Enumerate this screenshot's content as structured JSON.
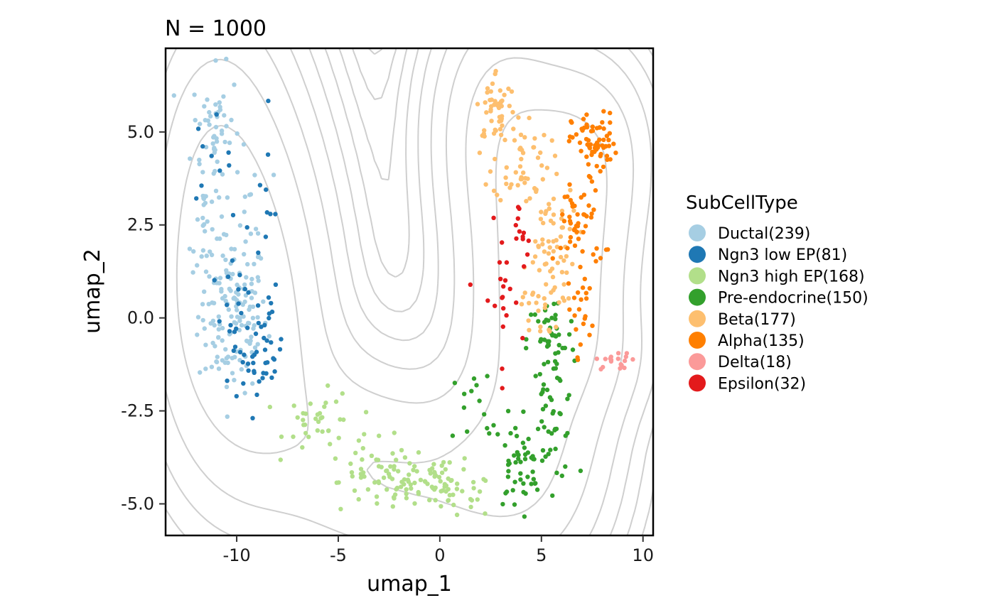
{
  "chart_data": {
    "type": "scatter",
    "title": "N = 1000",
    "xlabel": "umap_1",
    "ylabel": "umap_2",
    "xlim": [
      -13.5,
      10.5
    ],
    "ylim": [
      -5.85,
      7.25
    ],
    "xticks": [
      -10,
      -5,
      0,
      5,
      10
    ],
    "xtick_labels": [
      "-10",
      "-5",
      "0",
      "5",
      "10"
    ],
    "yticks": [
      -5,
      -2.5,
      0,
      2.5,
      5
    ],
    "ytick_labels": [
      "-5.0",
      "-2.5",
      "0.0",
      "2.5",
      "5.0"
    ],
    "contour_color": "#cccccc",
    "legend": {
      "title": "SubCellType",
      "position": "right"
    },
    "series": [
      {
        "name": "Ductal",
        "label": "Ductal(239)",
        "count": 239,
        "color": "#a6cee3",
        "regions": [
          {
            "cx": -10.2,
            "cy": 0.1,
            "sx": 0.85,
            "sy": 1.05,
            "n": 150
          },
          {
            "cx": -11.0,
            "cy": 5.0,
            "sx": 0.6,
            "sy": 0.85,
            "n": 55
          },
          {
            "cx": -11.6,
            "cy": 2.5,
            "sx": 0.35,
            "sy": 0.9,
            "n": 24
          },
          {
            "cx": -9.2,
            "cy": 2.8,
            "sx": 0.5,
            "sy": 0.6,
            "n": 10
          }
        ]
      },
      {
        "name": "Ngn3 low EP",
        "label": "Ngn3 low EP(81)",
        "count": 81,
        "color": "#1f78b4",
        "regions": [
          {
            "cx": -8.7,
            "cy": -1.0,
            "sx": 0.5,
            "sy": 0.5,
            "n": 32
          },
          {
            "cx": -9.7,
            "cy": 0.0,
            "sx": 0.8,
            "sy": 0.8,
            "n": 27
          },
          {
            "cx": -8.6,
            "cy": 2.8,
            "sx": 0.55,
            "sy": 1.3,
            "n": 12
          },
          {
            "cx": -11.3,
            "cy": 4.3,
            "sx": 0.5,
            "sy": 0.6,
            "n": 10
          }
        ]
      },
      {
        "name": "Ngn3 high EP",
        "label": "Ngn3 high EP(168)",
        "count": 168,
        "color": "#b2df8a",
        "regions": [
          {
            "cx": -1.5,
            "cy": -4.4,
            "sx": 1.7,
            "sy": 0.4,
            "n": 85
          },
          {
            "cx": 0.6,
            "cy": -4.8,
            "sx": 1.1,
            "sy": 0.3,
            "n": 30
          },
          {
            "cx": -5.8,
            "cy": -2.8,
            "sx": 0.9,
            "sy": 0.4,
            "n": 35
          },
          {
            "cx": -3.8,
            "cy": -3.7,
            "sx": 0.6,
            "sy": 0.4,
            "n": 18
          }
        ]
      },
      {
        "name": "Pre-endocrine",
        "label": "Pre-endocrine(150)",
        "count": 150,
        "color": "#33a02c",
        "regions": [
          {
            "cx": 5.5,
            "cy": -2.6,
            "sx": 0.6,
            "sy": 0.9,
            "n": 50
          },
          {
            "cx": 3.8,
            "cy": -4.0,
            "sx": 0.6,
            "sy": 0.6,
            "n": 45
          },
          {
            "cx": 5.5,
            "cy": -0.6,
            "sx": 0.6,
            "sy": 0.6,
            "n": 40
          },
          {
            "cx": 2.0,
            "cy": -2.5,
            "sx": 0.8,
            "sy": 0.7,
            "n": 15
          }
        ]
      },
      {
        "name": "Beta",
        "label": "Beta(177)",
        "count": 177,
        "color": "#fdbf6f",
        "regions": [
          {
            "cx": 2.8,
            "cy": 5.7,
            "sx": 0.5,
            "sy": 0.5,
            "n": 45
          },
          {
            "cx": 4.0,
            "cy": 4.3,
            "sx": 0.7,
            "sy": 0.6,
            "n": 50
          },
          {
            "cx": 5.3,
            "cy": 2.0,
            "sx": 0.7,
            "sy": 0.8,
            "n": 55
          },
          {
            "cx": 5.0,
            "cy": 0.4,
            "sx": 0.5,
            "sy": 0.5,
            "n": 27
          }
        ]
      },
      {
        "name": "Alpha",
        "label": "Alpha(135)",
        "count": 135,
        "color": "#ff7f00",
        "regions": [
          {
            "cx": 7.6,
            "cy": 4.7,
            "sx": 0.55,
            "sy": 0.4,
            "n": 65
          },
          {
            "cx": 6.9,
            "cy": 2.5,
            "sx": 0.6,
            "sy": 0.7,
            "n": 50
          },
          {
            "cx": 7.0,
            "cy": 0.2,
            "sx": 0.35,
            "sy": 0.6,
            "n": 20
          }
        ]
      },
      {
        "name": "Delta",
        "label": "Delta(18)",
        "count": 18,
        "color": "#fb9a99",
        "regions": [
          {
            "cx": 8.7,
            "cy": -1.15,
            "sx": 0.5,
            "sy": 0.12,
            "n": 18
          }
        ]
      },
      {
        "name": "Epsilon",
        "label": "Epsilon(32)",
        "count": 32,
        "color": "#e31a1c",
        "regions": [
          {
            "cx": 3.0,
            "cy": 0.5,
            "sx": 0.5,
            "sy": 1.0,
            "n": 22
          },
          {
            "cx": 4.0,
            "cy": 2.6,
            "sx": 0.4,
            "sy": 0.6,
            "n": 10
          }
        ]
      }
    ]
  }
}
